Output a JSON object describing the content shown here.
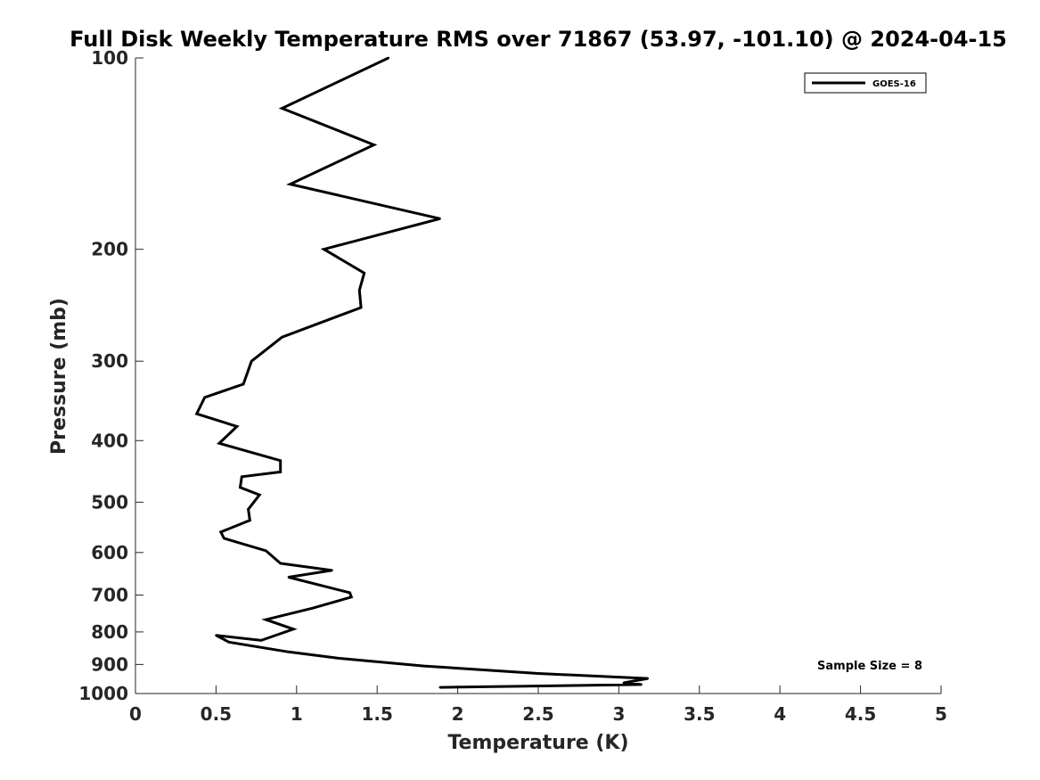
{
  "chart_data": {
    "type": "line",
    "title": "Full Disk Weekly Temperature RMS over 71867 (53.97, -101.10) @ 2024-04-15",
    "xlabel": "Temperature (K)",
    "ylabel": "Pressure (mb)",
    "xlim": [
      0,
      5
    ],
    "ylim": [
      100,
      1000
    ],
    "y_scale": "log",
    "y_reversed": true,
    "xticks": [
      0,
      0.5,
      1,
      1.5,
      2,
      2.5,
      3,
      3.5,
      4,
      4.5,
      5
    ],
    "xtick_labels": [
      "0",
      "0.5",
      "1",
      "1.5",
      "2",
      "2.5",
      "3",
      "3.5",
      "4",
      "4.5",
      "5"
    ],
    "yticks": [
      100,
      200,
      300,
      400,
      500,
      600,
      700,
      800,
      900,
      1000
    ],
    "ytick_labels": [
      "100",
      "200",
      "300",
      "400",
      "500",
      "600",
      "700",
      "800",
      "900",
      "1000"
    ],
    "grid": false,
    "legend_position": "top-right",
    "series": [
      {
        "name": "GOES-16",
        "color": "#000000",
        "x": [
          1.57,
          0.91,
          1.48,
          0.96,
          1.89,
          1.17,
          1.42,
          1.39,
          1.4,
          0.91,
          0.72,
          0.67,
          0.43,
          0.38,
          0.63,
          0.52,
          0.9,
          0.9,
          0.66,
          0.65,
          0.77,
          0.7,
          0.71,
          0.53,
          0.55,
          0.81,
          0.9,
          1.22,
          0.95,
          1.33,
          1.34,
          1.1,
          0.81,
          0.98,
          0.78,
          0.5,
          0.58,
          0.95,
          1.26,
          1.79,
          2.5,
          3.18,
          3.03,
          3.14,
          1.89
        ],
        "y": [
          100,
          120,
          137,
          158,
          179,
          200,
          218,
          232,
          247,
          275,
          300,
          326,
          342,
          363,
          380,
          404,
          430,
          448,
          456,
          474,
          487,
          513,
          534,
          557,
          570,
          596,
          624,
          640,
          656,
          694,
          705,
          734,
          765,
          792,
          825,
          810,
          830,
          860,
          880,
          905,
          930,
          947,
          962,
          968,
          978
        ]
      }
    ],
    "annotations": [
      {
        "text": "Sample Size = 8",
        "x": 4.85,
        "y": 922
      }
    ]
  }
}
